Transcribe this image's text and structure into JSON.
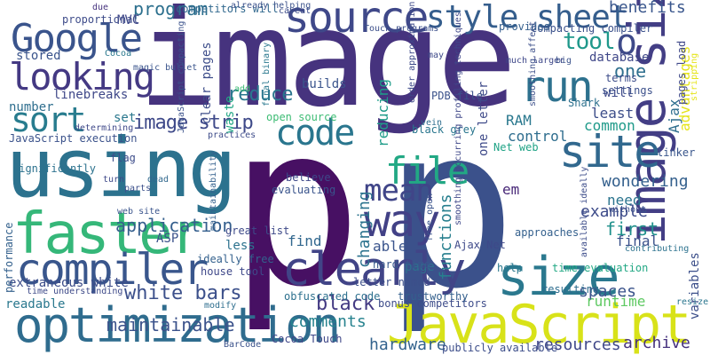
{
  "words": [
    {
      "text": "image",
      "color": "#46337e"
    },
    {
      "text": "p",
      "color": "#471063"
    },
    {
      "text": "p",
      "color": "#3b518b"
    },
    {
      "text": "using",
      "color": "#2c728e"
    },
    {
      "text": "optimization",
      "color": "#2f6c8e"
    },
    {
      "text": "JavaScript",
      "color": "#d8e219"
    },
    {
      "text": "faster",
      "color": "#35b779"
    },
    {
      "text": "compiler",
      "color": "#39568c"
    },
    {
      "text": "image size",
      "color": "#433e85"
    },
    {
      "text": "source",
      "color": "#3f4889"
    },
    {
      "text": "style sheet",
      "color": "#355e8d"
    },
    {
      "text": "Google",
      "color": "#3a548c"
    },
    {
      "text": "looking",
      "color": "#443983"
    },
    {
      "text": "size",
      "color": "#2a788e"
    },
    {
      "text": "clearly",
      "color": "#414487"
    },
    {
      "text": "way",
      "color": "#424186"
    },
    {
      "text": "code",
      "color": "#2a768e"
    },
    {
      "text": "site",
      "color": "#31688e"
    },
    {
      "text": "sort",
      "color": "#287c8e"
    },
    {
      "text": "run",
      "color": "#2d718e"
    },
    {
      "text": "file",
      "color": "#22a884"
    },
    {
      "text": "mean",
      "color": "#404588"
    },
    {
      "text": "o",
      "color": "#3e4a89"
    },
    {
      "text": "tool",
      "color": "#1f988b"
    },
    {
      "text": "image strip",
      "color": "#3e4989"
    },
    {
      "text": "program",
      "color": "#2d708e"
    },
    {
      "text": "reduce",
      "color": "#2a768e"
    },
    {
      "text": "application",
      "color": "#355f8d"
    },
    {
      "text": "white bars",
      "color": "#3c508b"
    },
    {
      "text": "black",
      "color": "#443a83"
    },
    {
      "text": "maintainable",
      "color": "#3b528b"
    },
    {
      "text": "comments",
      "color": "#26828e"
    },
    {
      "text": "hardware",
      "color": "#33638d"
    },
    {
      "text": "resources",
      "color": "#3f4788"
    },
    {
      "text": "archive",
      "color": "#46327e"
    },
    {
      "text": "runtime",
      "color": "#5ec962"
    },
    {
      "text": "spaces",
      "color": "#3a538b"
    },
    {
      "text": "example",
      "color": "#3e4c8a"
    },
    {
      "text": "functions",
      "color": "#277f8e"
    },
    {
      "text": "changing",
      "color": "#2c738e"
    },
    {
      "text": "benefits",
      "color": "#39568c"
    },
    {
      "text": "database",
      "color": "#3f4788"
    },
    {
      "text": "one",
      "color": "#2e6f8e"
    },
    {
      "text": "least",
      "color": "#3d4e8a"
    },
    {
      "text": "common",
      "color": "#1f9a8a"
    },
    {
      "text": "control",
      "color": "#2e6d8e"
    },
    {
      "text": "final",
      "color": "#3b518b"
    },
    {
      "text": "first",
      "color": "#21918c"
    },
    {
      "text": "need",
      "color": "#2b748e"
    },
    {
      "text": "wondering",
      "color": "#34608d"
    },
    {
      "text": "find",
      "color": "#31678e"
    },
    {
      "text": "able",
      "color": "#3a548c"
    },
    {
      "text": "page",
      "color": "#2d718e"
    },
    {
      "text": "em",
      "color": "#482878"
    },
    {
      "text": "Ajax",
      "color": "#2e6e8e"
    },
    {
      "text": "variables",
      "color": "#3c4f8a"
    },
    {
      "text": "advantages",
      "color": "#e5e419"
    },
    {
      "text": "extraneous white",
      "color": "#3d4d8a"
    },
    {
      "text": "performance",
      "color": "#34618d"
    },
    {
      "text": "readable",
      "color": "#2a788e"
    },
    {
      "text": "linebreaks",
      "color": "#3f4889"
    },
    {
      "text": "stored",
      "color": "#3a548c"
    },
    {
      "text": "MVC",
      "color": "#3f4788"
    },
    {
      "text": "number",
      "color": "#2e6e8e"
    },
    {
      "text": "set",
      "color": "#2a788e"
    },
    {
      "text": "builds",
      "color": "#3a548c"
    },
    {
      "text": "RAM",
      "color": "#2a788e"
    },
    {
      "text": "waste",
      "color": "#22a785"
    },
    {
      "text": "ASP",
      "color": "#3b528b"
    },
    {
      "text": "less",
      "color": "#2c728e"
    },
    {
      "text": "will",
      "color": "#3e4989"
    },
    {
      "text": "letter named",
      "color": "#3c4f8a"
    },
    {
      "text": "one letter",
      "color": "#3e4a89"
    },
    {
      "text": "reducing",
      "color": "#1e9c89"
    },
    {
      "text": "clear pages",
      "color": "#3d4d8a"
    },
    {
      "text": "JavaScript execution",
      "color": "#3b528b"
    },
    {
      "text": "hard time",
      "color": "#38588c"
    },
    {
      "text": "house tool",
      "color": "#3f4889"
    },
    {
      "text": "ideally free",
      "color": "#34618d"
    },
    {
      "text": "great list",
      "color": "#3e4a89"
    },
    {
      "text": "open source",
      "color": "#3dbc74"
    },
    {
      "text": "Net web",
      "color": "#20a386"
    },
    {
      "text": "black grey",
      "color": "#2a768e"
    },
    {
      "text": "PDB file",
      "color": "#3b528b"
    },
    {
      "text": "believe",
      "color": "#3e4989"
    },
    {
      "text": "evaluating",
      "color": "#3a548c"
    },
    {
      "text": "obfuscated code",
      "color": "#2d708e"
    },
    {
      "text": "bonus competitors",
      "color": "#3e4c8a"
    },
    {
      "text": "trustworthy",
      "color": "#34608d"
    },
    {
      "text": "Cocoa Touch",
      "color": "#3f4788"
    },
    {
      "text": "publicly available",
      "color": "#3d4e8a"
    },
    {
      "text": "resulting",
      "color": "#2e6d8e"
    },
    {
      "text": "time evaluation",
      "color": "#22a884"
    },
    {
      "text": "Ajax Net",
      "color": "#3e4989"
    },
    {
      "text": "approaches",
      "color": "#34608d"
    },
    {
      "text": "help",
      "color": "#2a788e"
    },
    {
      "text": "settings",
      "color": "#3c508b"
    },
    {
      "text": "terms",
      "color": "#3d4d8a"
    },
    {
      "text": "pages load",
      "color": "#3f4889"
    },
    {
      "text": "linker",
      "color": "#39568c"
    },
    {
      "text": "Shark",
      "color": "#2d718e"
    },
    {
      "text": "compacting compiler",
      "color": "#3b518b"
    },
    {
      "text": "provides",
      "color": "#355f8d"
    },
    {
      "text": "Touch programs",
      "color": "#3c4f8a"
    },
    {
      "text": "competitors will",
      "color": "#31688e"
    },
    {
      "text": "due",
      "color": "#46337e"
    },
    {
      "text": "proportional",
      "color": "#3e4c8a"
    },
    {
      "text": "magic bullet",
      "color": "#3a548c"
    },
    {
      "text": "Cocoa",
      "color": "#2a788e"
    },
    {
      "text": "JavaScript compacting",
      "color": "#3b528b"
    },
    {
      "text": "maintainability",
      "color": "#34608d"
    },
    {
      "text": "determining",
      "color": "#3f4889"
    },
    {
      "text": "flag",
      "color": "#3d4d8a"
    },
    {
      "text": "significantly",
      "color": "#2c728e"
    },
    {
      "text": "turn",
      "color": "#3e4989"
    },
    {
      "text": "dead",
      "color": "#31688e"
    },
    {
      "text": "web site",
      "color": "#3a548c"
    },
    {
      "text": "parts",
      "color": "#3c508b"
    },
    {
      "text": "modify",
      "color": "#2e6e8e"
    },
    {
      "text": "time understanding",
      "color": "#3e4a89"
    },
    {
      "text": "practices",
      "color": "#3e4c8a"
    },
    {
      "text": "add",
      "color": "#3dbc74"
    },
    {
      "text": "BarCode",
      "color": "#3b528b"
    },
    {
      "text": "much larger",
      "color": "#3f4889"
    },
    {
      "text": "smoothing affect",
      "color": "#3c4f8a"
    },
    {
      "text": "final binary",
      "color": "#2a788e"
    },
    {
      "text": "available ideally",
      "color": "#3d4d8a"
    },
    {
      "text": "free open",
      "color": "#3a548c"
    },
    {
      "text": "vein",
      "color": "#2e6d8e"
    },
    {
      "text": "may",
      "color": "#3e4989"
    },
    {
      "text": "big",
      "color": "#3b528b"
    },
    {
      "text": "without",
      "color": "#3c508b"
    },
    {
      "text": "contributing",
      "color": "#2c728e"
    },
    {
      "text": "smoothing occurring profiling techniques",
      "color": "#3f4889"
    },
    {
      "text": "order approximation",
      "color": "#3e4a89"
    },
    {
      "text": "stripping",
      "color": "#e5e419"
    },
    {
      "text": "resize",
      "color": "#2a768e"
    },
    {
      "text": "caveat",
      "color": "#3d4d8a"
    },
    {
      "text": "already helping",
      "color": "#3b528b"
    }
  ]
}
